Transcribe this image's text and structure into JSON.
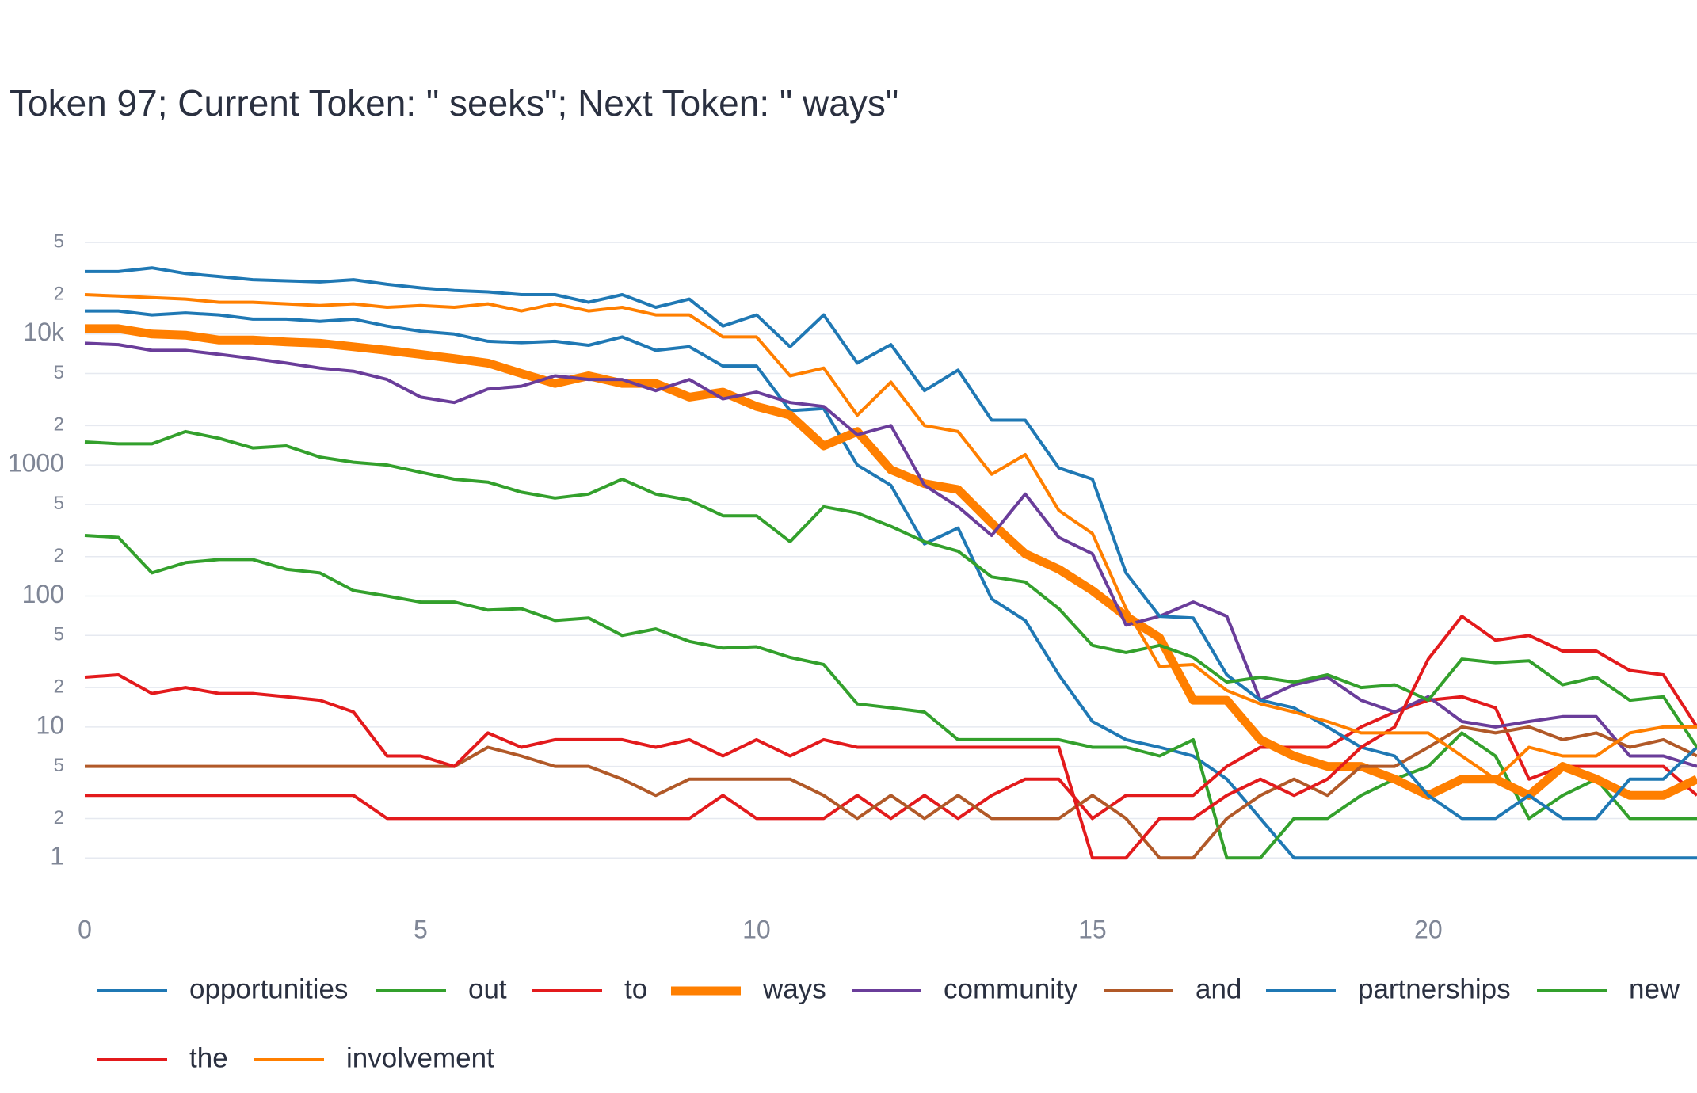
{
  "chart_data": {
    "type": "line",
    "title": "Token 97; Current Token: \" seeks\"; Next Token: \" ways\"",
    "log_y": true,
    "grid": true,
    "x": [
      0,
      0.5,
      1,
      1.5,
      2,
      2.5,
      3,
      3.5,
      4,
      4.5,
      5,
      5.5,
      6,
      6.5,
      7,
      7.5,
      8,
      8.5,
      9,
      9.5,
      10,
      10.5,
      11,
      11.5,
      12,
      12.5,
      13,
      13.5,
      14,
      14.5,
      15,
      15.5,
      16,
      16.5,
      17,
      17.5,
      18,
      18.5,
      19,
      19.5,
      20,
      20.5,
      21,
      21.5,
      22,
      22.5,
      23,
      23.5,
      24
    ],
    "xlim": [
      0,
      24
    ],
    "xticks": [
      0,
      5,
      10,
      15,
      20
    ],
    "ylim": [
      0.5,
      70000
    ],
    "yticks": [
      1,
      2,
      5,
      10,
      {
        "value": 20,
        "label": "2"
      },
      {
        "value": 50,
        "label": "5"
      },
      100,
      {
        "value": 200,
        "label": "2"
      },
      {
        "value": 500,
        "label": "5"
      },
      1000,
      {
        "value": 2000,
        "label": "2"
      },
      {
        "value": 5000,
        "label": "5"
      },
      {
        "value": 10000,
        "label": "10k"
      },
      {
        "value": 20000,
        "label": "2"
      },
      {
        "value": 50000,
        "label": "5"
      }
    ],
    "series": [
      {
        "name": "opportunities",
        "color": "#1f78b4",
        "width": 4,
        "values": [
          15000,
          15000,
          14000,
          14500,
          14000,
          13000,
          13000,
          12500,
          13000,
          11500,
          10500,
          10000,
          8800,
          8600,
          8800,
          8200,
          9500,
          7500,
          8000,
          5700,
          5700,
          2600,
          2700,
          1000,
          700,
          250,
          330,
          95,
          65,
          25,
          11,
          8,
          7,
          6,
          4,
          2,
          1,
          1,
          1,
          1,
          1,
          1,
          1,
          1,
          1,
          1,
          1,
          1,
          1
        ]
      },
      {
        "name": "out",
        "color": "#33a02c",
        "width": 4,
        "values": [
          290,
          280,
          150,
          180,
          190,
          190,
          160,
          150,
          110,
          100,
          90,
          90,
          78,
          80,
          65,
          68,
          50,
          56,
          45,
          40,
          41,
          34,
          30,
          15,
          14,
          13,
          8,
          8,
          8,
          8,
          7,
          7,
          6,
          8,
          1,
          1,
          2,
          2,
          3,
          4,
          5,
          9,
          6,
          2,
          3,
          4,
          2,
          2,
          2
        ]
      },
      {
        "name": "to",
        "color": "#e31a1c",
        "width": 4,
        "values": [
          3,
          3,
          3,
          3,
          3,
          3,
          3,
          3,
          3,
          2,
          2,
          2,
          2,
          2,
          2,
          2,
          2,
          2,
          2,
          3,
          2,
          2,
          2,
          3,
          2,
          3,
          2,
          3,
          4,
          4,
          2,
          3,
          3,
          3,
          5,
          7,
          7,
          7,
          10,
          13,
          16,
          17,
          14,
          4,
          5,
          5,
          5,
          5,
          3
        ]
      },
      {
        "name": "ways",
        "color": "#ff7f00",
        "width": 11,
        "values": [
          11000,
          11000,
          10000,
          9800,
          9000,
          9000,
          8700,
          8500,
          8000,
          7500,
          7000,
          6500,
          6000,
          5000,
          4200,
          4800,
          4200,
          4200,
          3300,
          3600,
          2800,
          2400,
          1400,
          1800,
          920,
          720,
          650,
          360,
          210,
          160,
          110,
          70,
          48,
          16,
          16,
          8,
          6,
          5,
          5,
          4,
          3,
          4,
          4,
          3,
          5,
          4,
          3,
          3,
          4
        ]
      },
      {
        "name": "community",
        "color": "#6a3d9a",
        "width": 4,
        "values": [
          8500,
          8300,
          7500,
          7500,
          7000,
          6500,
          6000,
          5500,
          5200,
          4500,
          3300,
          3000,
          3800,
          4000,
          4800,
          4500,
          4500,
          3700,
          4500,
          3200,
          3600,
          3000,
          2800,
          1700,
          2000,
          700,
          480,
          290,
          600,
          280,
          210,
          60,
          70,
          90,
          70,
          16,
          21,
          24,
          16,
          13,
          17,
          11,
          10,
          11,
          12,
          12,
          6,
          6,
          5
        ]
      },
      {
        "name": "and",
        "color": "#b15928",
        "width": 4,
        "values": [
          5,
          5,
          5,
          5,
          5,
          5,
          5,
          5,
          5,
          5,
          5,
          5,
          7,
          6,
          5,
          5,
          4,
          3,
          4,
          4,
          4,
          4,
          3,
          2,
          3,
          2,
          3,
          2,
          2,
          2,
          3,
          2,
          1,
          1,
          2,
          3,
          4,
          3,
          5,
          5,
          7,
          10,
          9,
          10,
          8,
          9,
          7,
          8,
          6
        ]
      },
      {
        "name": "partnerships",
        "color": "#1f78b4",
        "width": 4,
        "values": [
          30000,
          30000,
          32000,
          29000,
          27500,
          26000,
          25500,
          25000,
          26000,
          24000,
          22500,
          21500,
          21000,
          20000,
          20000,
          17500,
          20000,
          16000,
          18500,
          11500,
          14000,
          8000,
          14000,
          6000,
          8300,
          3700,
          5300,
          2200,
          2200,
          950,
          780,
          150,
          70,
          68,
          25,
          16,
          14,
          10,
          7,
          6,
          3,
          2,
          2,
          3,
          2,
          2,
          4,
          4,
          7
        ]
      },
      {
        "name": "new",
        "color": "#33a02c",
        "width": 4,
        "values": [
          1500,
          1450,
          1450,
          1800,
          1600,
          1350,
          1400,
          1150,
          1050,
          1000,
          880,
          780,
          740,
          620,
          560,
          600,
          780,
          600,
          540,
          410,
          410,
          260,
          480,
          430,
          340,
          260,
          220,
          140,
          128,
          80,
          42,
          37,
          42,
          34,
          22,
          24,
          22,
          25,
          20,
          21,
          16,
          33,
          31,
          32,
          21,
          24,
          16,
          17,
          7
        ]
      },
      {
        "name": "the",
        "color": "#e31a1c",
        "width": 4,
        "values": [
          24,
          25,
          18,
          20,
          18,
          18,
          17,
          16,
          13,
          6,
          6,
          5,
          9,
          7,
          8,
          8,
          8,
          7,
          8,
          6,
          8,
          6,
          8,
          7,
          7,
          7,
          7,
          7,
          7,
          7,
          1,
          1,
          2,
          2,
          3,
          4,
          3,
          4,
          7,
          10,
          33,
          70,
          46,
          50,
          38,
          38,
          27,
          25,
          10
        ]
      },
      {
        "name": "involvement",
        "color": "#ff7f00",
        "width": 4,
        "values": [
          20000,
          19500,
          19000,
          18500,
          17500,
          17500,
          17000,
          16500,
          17000,
          16000,
          16500,
          16000,
          17000,
          15000,
          17000,
          15000,
          16000,
          14000,
          14000,
          9500,
          9500,
          4800,
          5500,
          2400,
          4300,
          2000,
          1800,
          850,
          1200,
          450,
          300,
          80,
          29,
          30,
          19,
          15,
          13,
          11,
          9,
          9,
          9,
          6,
          4,
          7,
          6,
          6,
          9,
          10,
          10
        ]
      }
    ]
  }
}
